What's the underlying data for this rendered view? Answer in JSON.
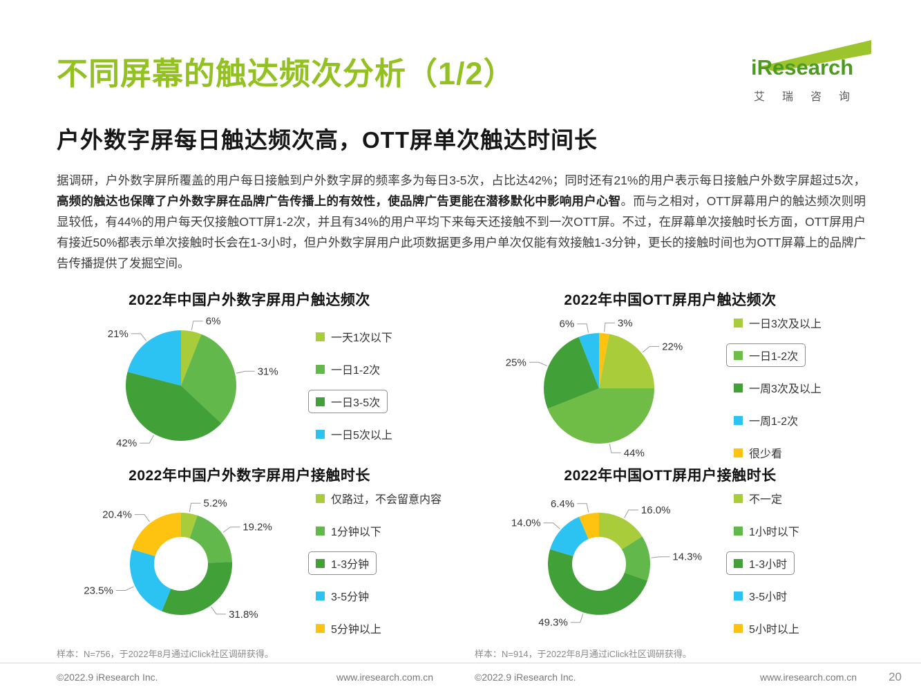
{
  "page": {
    "title": "不同屏幕的触达频次分析（1/2）",
    "subtitle": "户外数字屏每日触达频次高，OTT屏单次触达时间长",
    "page_number": "20",
    "accent_color": "#94c122"
  },
  "logo": {
    "brand": "iResearch",
    "brand_cn": "艾瑞咨询"
  },
  "paragraph_runs": [
    {
      "bold": false,
      "text": "据调研，户外数字屏所覆盖的用户每日接触到户外数字屏的频率多为每日3-5次，占比达42%；同时还有21%的用户表示每日接触户外数字屏超过5次，"
    },
    {
      "bold": true,
      "text": "高频的触达也保障了户外数字屏在品牌广告传播上的有效性，使品牌广告更能在潜移默化中影响用户心智"
    },
    {
      "bold": false,
      "text": "。而与之相对，OTT屏幕用户的触达频次则明显较低，有44%的用户每天仅接触OTT屏1-2次，并且有34%的用户平均下来每天还接触不到一次OTT屏。不过，在屏幕单次接触时长方面，OTT屏用户有接近50%都表示单次接触时长会在1-3小时，但户外数字屏用户此项数据更多用户单次仅能有效接触1-3分钟，更长的接触时间也为OTT屏幕上的品牌广告传播提供了发掘空间。"
    }
  ],
  "chart_data": [
    {
      "type": "pie",
      "title": "2022年中国户外数字屏用户触达频次",
      "unit": "%",
      "donut": false,
      "legend_position": "right",
      "highlighted_index": 2,
      "series": [
        {
          "label": "一天1次以下",
          "value": 6,
          "display": "6%",
          "color": "#a8cc3a"
        },
        {
          "label": "一日1-2次",
          "value": 31,
          "display": "31%",
          "color": "#62b84a"
        },
        {
          "label": "一日3-5次",
          "value": 42,
          "display": "42%",
          "color": "#42a038"
        },
        {
          "label": "一日5次以上",
          "value": 21,
          "display": "21%",
          "color": "#2cc3f2"
        }
      ]
    },
    {
      "type": "pie",
      "title": "2022年中国OTT屏用户触达频次",
      "unit": "%",
      "donut": false,
      "legend_position": "right",
      "highlighted_index": 2,
      "legend_order": [
        1,
        2,
        3,
        4,
        0
      ],
      "series": [
        {
          "label": "很少看",
          "value": 3,
          "display": "3%",
          "color": "#fec211"
        },
        {
          "label": "一日3次及以上",
          "value": 22,
          "display": "22%",
          "color": "#a8cc3a"
        },
        {
          "label": "一日1-2次",
          "value": 44,
          "display": "44%",
          "color": "#6fbd46"
        },
        {
          "label": "一周3次及以上",
          "value": 25,
          "display": "25%",
          "color": "#42a038"
        },
        {
          "label": "一周1-2次",
          "value": 6,
          "display": "6%",
          "color": "#2cc3f2"
        }
      ]
    },
    {
      "type": "pie",
      "title": "2022年中国户外数字屏用户接触时长",
      "unit": "%",
      "donut": true,
      "legend_position": "right",
      "highlighted_index": 2,
      "series": [
        {
          "label": "仅路过，不会留意内容",
          "value": 5.2,
          "display": "5.2%",
          "color": "#a8cc3a"
        },
        {
          "label": "1分钟以下",
          "value": 19.2,
          "display": "19.2%",
          "color": "#62b84a"
        },
        {
          "label": "1-3分钟",
          "value": 31.8,
          "display": "31.8%",
          "color": "#42a038"
        },
        {
          "label": "3-5分钟",
          "value": 23.5,
          "display": "23.5%",
          "color": "#2cc3f2"
        },
        {
          "label": "5分钟以上",
          "value": 20.4,
          "display": "20.4%",
          "color": "#fec211"
        }
      ],
      "note": "样本：N=756，于2022年8月通过iClick社区调研获得。"
    },
    {
      "type": "pie",
      "title": "2022年中国OTT屏用户接触时长",
      "unit": "%",
      "donut": true,
      "legend_position": "right",
      "highlighted_index": 2,
      "series": [
        {
          "label": "不一定",
          "value": 16.0,
          "display": "16.0%",
          "color": "#a8cc3a"
        },
        {
          "label": "1小时以下",
          "value": 14.3,
          "display": "14.3%",
          "color": "#62b84a"
        },
        {
          "label": "1-3小时",
          "value": 49.3,
          "display": "49.3%",
          "color": "#42a038"
        },
        {
          "label": "3-5小时",
          "value": 14.0,
          "display": "14.0%",
          "color": "#2cc3f2"
        },
        {
          "label": "5小时以上",
          "value": 6.4,
          "display": "6.4%",
          "color": "#fec211"
        }
      ],
      "note": "样本：N=914，于2022年8月通过iClick社区调研获得。"
    }
  ],
  "footer": {
    "copyright": "©2022.9 iResearch Inc.",
    "website": "www.iresearch.com.cn"
  }
}
